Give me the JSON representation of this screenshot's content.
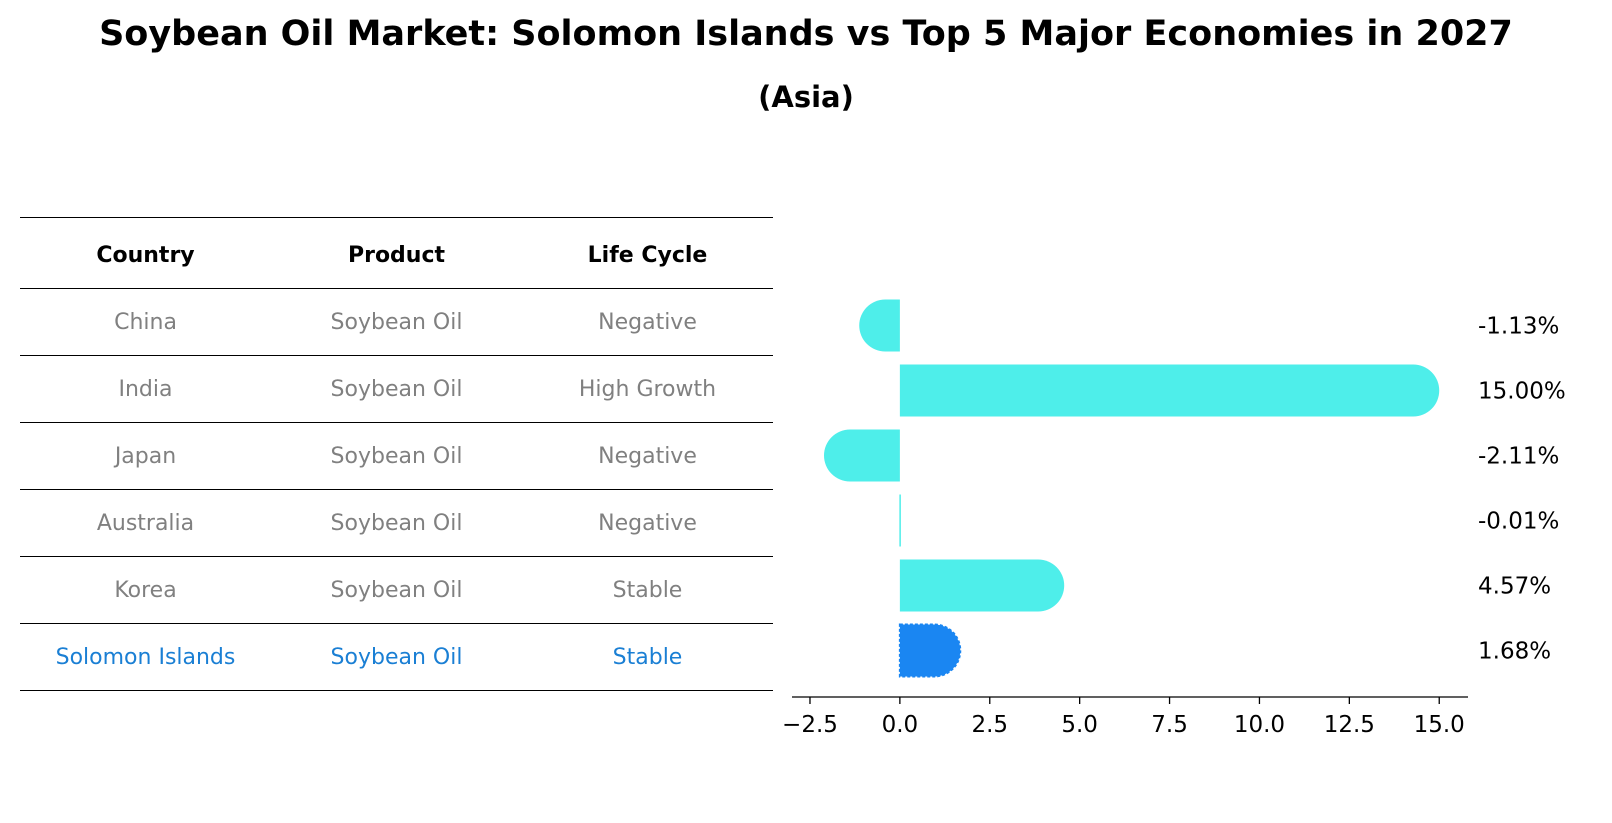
{
  "title": "Soybean Oil Market: Solomon Islands vs Top 5 Major Economies in 2027",
  "subtitle": "(Asia)",
  "table": {
    "headers": [
      "Country",
      "Product",
      "Life Cycle"
    ],
    "rows": [
      [
        "China",
        "Soybean Oil",
        "Negative"
      ],
      [
        "India",
        "Soybean Oil",
        "High Growth"
      ],
      [
        "Japan",
        "Soybean Oil",
        "Negative"
      ],
      [
        "Australia",
        "Soybean Oil",
        "Negative"
      ],
      [
        "Korea",
        "Soybean Oil",
        "Stable"
      ],
      [
        "Solomon Islands",
        "Soybean Oil",
        "Stable"
      ]
    ],
    "highlight_row": 5,
    "colors": {
      "text": "#808080",
      "highlight": "#1a7fd4",
      "header": "#000000"
    }
  },
  "chart_data": {
    "type": "bar",
    "orientation": "horizontal",
    "categories": [
      "China",
      "India",
      "Japan",
      "Australia",
      "Korea",
      "Solomon Islands"
    ],
    "values": [
      -1.13,
      15.0,
      -2.11,
      -0.01,
      4.57,
      1.68
    ],
    "value_labels": [
      "-1.13%",
      "15.00%",
      "-2.11%",
      "-0.01%",
      "4.57%",
      "1.68%"
    ],
    "xlim": [
      -3.0,
      15.8
    ],
    "xticks": [
      -2.5,
      0.0,
      2.5,
      5.0,
      7.5,
      10.0,
      12.5,
      15.0
    ],
    "xtick_labels": [
      "−2.5",
      "0.0",
      "2.5",
      "5.0",
      "7.5",
      "10.0",
      "12.5",
      "15.0"
    ],
    "grid": false,
    "colors": {
      "default": "#4eeeea",
      "highlight": "#1a86f2"
    },
    "highlight_index": 5
  }
}
